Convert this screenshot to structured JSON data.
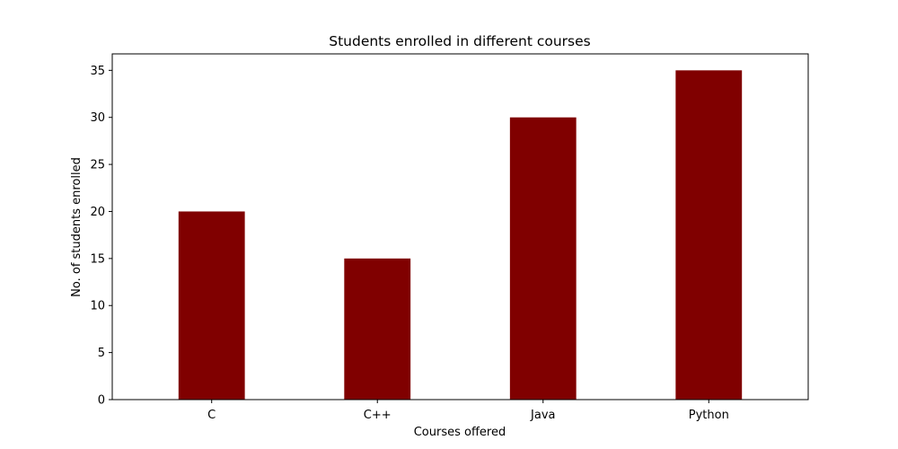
{
  "chart_data": {
    "type": "bar",
    "title": "Students enrolled in different courses",
    "xlabel": "Courses offered",
    "ylabel": "No. of students enrolled",
    "categories": [
      "C",
      "C++",
      "Java",
      "Python"
    ],
    "values": [
      20,
      15,
      30,
      35
    ],
    "ylim": [
      0,
      36.75
    ],
    "yticks": [
      0,
      5,
      10,
      15,
      20,
      25,
      30,
      35
    ],
    "grid": false,
    "legend": "none",
    "bar_color": "#800000"
  }
}
